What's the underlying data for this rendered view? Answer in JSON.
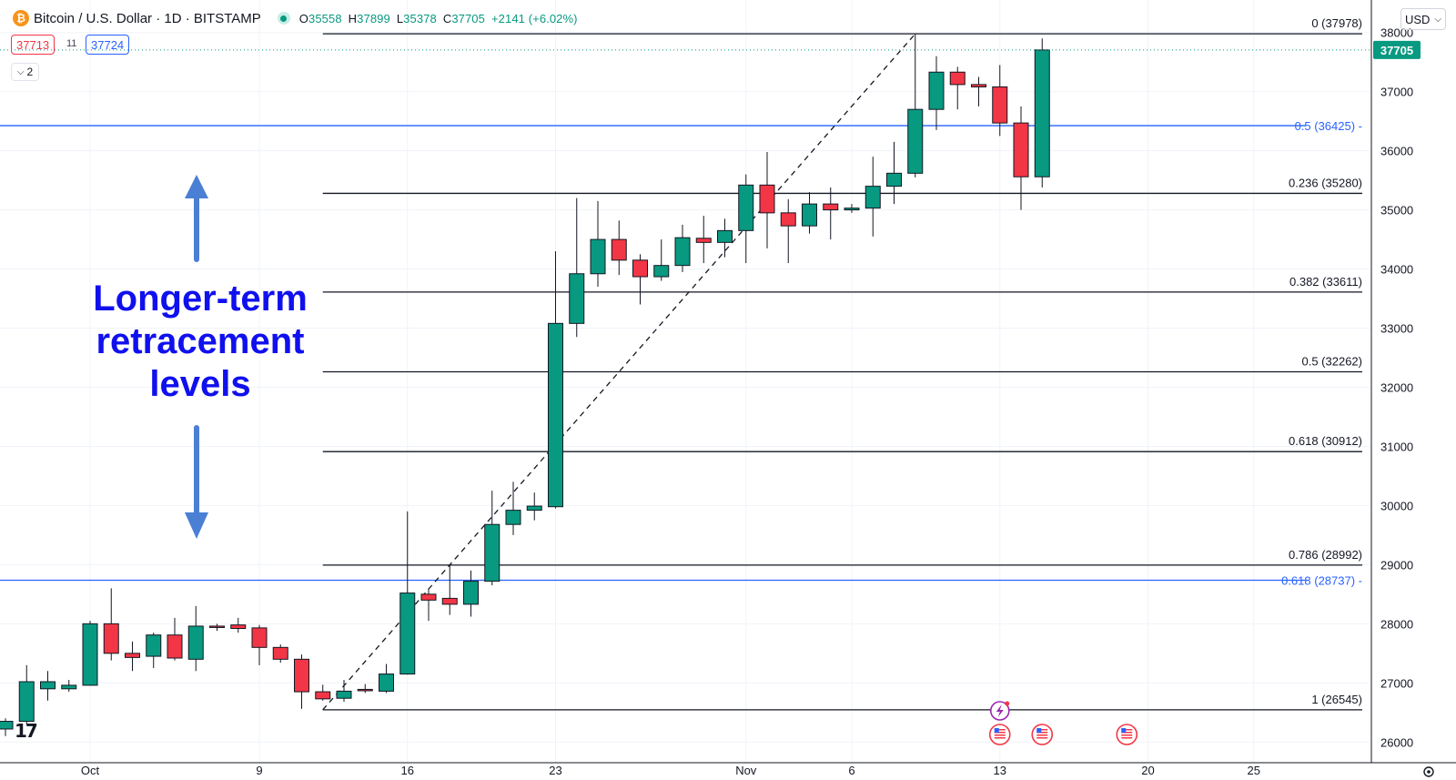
{
  "header": {
    "symbol_title": "Bitcoin / U.S. Dollar · 1D · BITSTAMP",
    "ohlc": [
      {
        "key": "O",
        "value": "35558"
      },
      {
        "key": "H",
        "value": "37899"
      },
      {
        "key": "L",
        "value": "35378"
      },
      {
        "key": "C",
        "value": "37705"
      },
      {
        "key": "",
        "value": "+2141 (+6.02%)"
      }
    ],
    "bid": "37713",
    "spread": "11",
    "ask": "37724",
    "collapse_label": "2",
    "currency": "USD"
  },
  "annotation": "Longer-term retracement levels",
  "colors": {
    "up": "#089981",
    "down": "#f23645",
    "fib_black": "#131722",
    "fib_blue": "#2962ff",
    "annotation_text": "#1010ee",
    "annotation_arrow": "#4a7fd4"
  },
  "chart_data": {
    "type": "candlestick",
    "x_ticks": [
      {
        "label": "Oct",
        "idx": 4
      },
      {
        "label": "9",
        "idx": 12
      },
      {
        "label": "16",
        "idx": 19
      },
      {
        "label": "23",
        "idx": 26
      },
      {
        "label": "Nov",
        "idx": 35
      },
      {
        "label": "6",
        "idx": 40
      },
      {
        "label": "13",
        "idx": 47
      },
      {
        "label": "20",
        "idx": 54
      },
      {
        "label": "25",
        "idx": 59
      }
    ],
    "y_ticks": [
      26000,
      27000,
      28000,
      29000,
      30000,
      31000,
      32000,
      33000,
      34000,
      35000,
      36000,
      37000,
      38000
    ],
    "ylim": [
      25650,
      38550
    ],
    "last_price": "37705",
    "candles": [
      {
        "o": 26220,
        "h": 26400,
        "l": 26100,
        "c": 26350
      },
      {
        "o": 26350,
        "h": 27300,
        "l": 26300,
        "c": 27020
      },
      {
        "o": 26900,
        "h": 27200,
        "l": 26700,
        "c": 27020
      },
      {
        "o": 26900,
        "h": 27050,
        "l": 26850,
        "c": 26960
      },
      {
        "o": 26960,
        "h": 28050,
        "l": 26950,
        "c": 28000
      },
      {
        "o": 28000,
        "h": 28600,
        "l": 27380,
        "c": 27500
      },
      {
        "o": 27500,
        "h": 27700,
        "l": 27200,
        "c": 27430
      },
      {
        "o": 27450,
        "h": 27850,
        "l": 27250,
        "c": 27810
      },
      {
        "o": 27810,
        "h": 28100,
        "l": 27380,
        "c": 27420
      },
      {
        "o": 27400,
        "h": 28300,
        "l": 27200,
        "c": 27960
      },
      {
        "o": 27960,
        "h": 28000,
        "l": 27880,
        "c": 27940
      },
      {
        "o": 27980,
        "h": 28100,
        "l": 27850,
        "c": 27920
      },
      {
        "o": 27930,
        "h": 27980,
        "l": 27300,
        "c": 27600
      },
      {
        "o": 27600,
        "h": 27650,
        "l": 27340,
        "c": 27400
      },
      {
        "o": 27400,
        "h": 27480,
        "l": 26560,
        "c": 26850
      },
      {
        "o": 26850,
        "h": 26970,
        "l": 26700,
        "c": 26730
      },
      {
        "o": 26740,
        "h": 27050,
        "l": 26680,
        "c": 26860
      },
      {
        "o": 26890,
        "h": 26980,
        "l": 26830,
        "c": 26880
      },
      {
        "o": 26860,
        "h": 27320,
        "l": 26830,
        "c": 27150
      },
      {
        "o": 27150,
        "h": 29900,
        "l": 27140,
        "c": 28520
      },
      {
        "o": 28500,
        "h": 28600,
        "l": 28050,
        "c": 28400
      },
      {
        "o": 28430,
        "h": 29000,
        "l": 28150,
        "c": 28330
      },
      {
        "o": 28330,
        "h": 28900,
        "l": 28120,
        "c": 28720
      },
      {
        "o": 28720,
        "h": 30250,
        "l": 28650,
        "c": 29680
      },
      {
        "o": 29680,
        "h": 30400,
        "l": 29500,
        "c": 29920
      },
      {
        "o": 29920,
        "h": 30220,
        "l": 29750,
        "c": 29990
      },
      {
        "o": 29980,
        "h": 34300,
        "l": 29950,
        "c": 33080
      },
      {
        "o": 33080,
        "h": 35200,
        "l": 32850,
        "c": 33920
      },
      {
        "o": 33920,
        "h": 35150,
        "l": 33700,
        "c": 34500
      },
      {
        "o": 34500,
        "h": 34820,
        "l": 33900,
        "c": 34150
      },
      {
        "o": 34150,
        "h": 34250,
        "l": 33400,
        "c": 33870
      },
      {
        "o": 33870,
        "h": 34500,
        "l": 33800,
        "c": 34060
      },
      {
        "o": 34060,
        "h": 34750,
        "l": 33950,
        "c": 34530
      },
      {
        "o": 34520,
        "h": 34900,
        "l": 34100,
        "c": 34450
      },
      {
        "o": 34450,
        "h": 34850,
        "l": 34200,
        "c": 34650
      },
      {
        "o": 34650,
        "h": 35600,
        "l": 34100,
        "c": 35420
      },
      {
        "o": 35420,
        "h": 35980,
        "l": 34350,
        "c": 34950
      },
      {
        "o": 34950,
        "h": 35180,
        "l": 34100,
        "c": 34730
      },
      {
        "o": 34730,
        "h": 35300,
        "l": 34600,
        "c": 35100
      },
      {
        "o": 35100,
        "h": 35380,
        "l": 34500,
        "c": 35000
      },
      {
        "o": 35000,
        "h": 35100,
        "l": 34950,
        "c": 35030
      },
      {
        "o": 35030,
        "h": 35900,
        "l": 34550,
        "c": 35400
      },
      {
        "o": 35400,
        "h": 36150,
        "l": 35100,
        "c": 35620
      },
      {
        "o": 35620,
        "h": 37980,
        "l": 35550,
        "c": 36700
      },
      {
        "o": 36700,
        "h": 37600,
        "l": 36350,
        "c": 37330
      },
      {
        "o": 37330,
        "h": 37420,
        "l": 36700,
        "c": 37120
      },
      {
        "o": 37120,
        "h": 37250,
        "l": 36750,
        "c": 37080
      },
      {
        "o": 37080,
        "h": 37450,
        "l": 36250,
        "c": 36470
      },
      {
        "o": 36470,
        "h": 36750,
        "l": 35000,
        "c": 35560
      },
      {
        "o": 35560,
        "h": 37899,
        "l": 35378,
        "c": 37705
      }
    ],
    "trend_line": {
      "from": {
        "idx": 15,
        "price": 26545
      },
      "to": {
        "idx": 43,
        "price": 37978
      }
    },
    "fib_long": [
      {
        "label": "0.618 (28737)",
        "price": 28737
      },
      {
        "label": "0.5 (36425)",
        "price": 36425
      }
    ],
    "fib_short": [
      {
        "label": "0 (37978)",
        "price": 37978
      },
      {
        "label": "0.236 (35280)",
        "price": 35280
      },
      {
        "label": "0.382 (33611)",
        "price": 33611
      },
      {
        "label": "0.5 (32262)",
        "price": 32262
      },
      {
        "label": "0.618 (30912)",
        "price": 30912
      },
      {
        "label": "0.786 (28992)",
        "price": 28992
      },
      {
        "label": "1 (26545)",
        "price": 26545
      }
    ],
    "event_markers": [
      {
        "idx": 47,
        "icon": "lightning-icon"
      },
      {
        "idx": 47,
        "icon": "us-flag-icon"
      },
      {
        "idx": 49,
        "icon": "us-flag-icon"
      },
      {
        "idx": 53,
        "icon": "us-flag-icon"
      }
    ]
  }
}
